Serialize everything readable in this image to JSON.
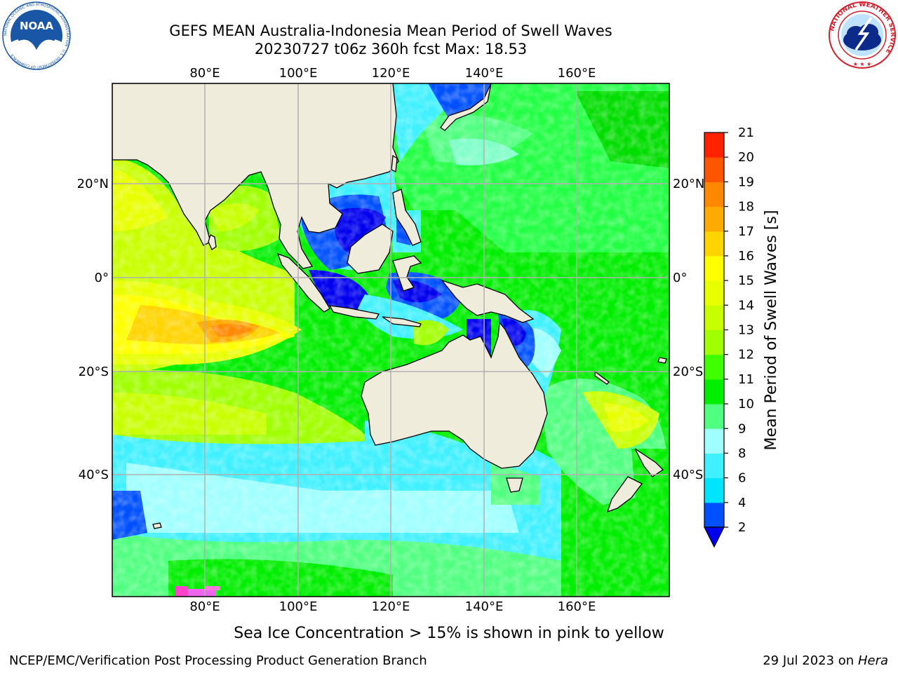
{
  "header": {
    "title_line1": "GEFS MEAN Australia-Indonesia Mean Period of Swell Waves",
    "title_line2": "20230727 t06z 360h fcst   Max: 18.53"
  },
  "logos": {
    "left": {
      "name": "noaa-logo",
      "text": "NOAA",
      "ring_text": "NATIONAL OCEANIC AND ATMOSPHERIC ADMINISTRATION · U.S. DEPARTMENT OF COMMERCE",
      "color": "#1a56a6"
    },
    "right": {
      "name": "nws-logo",
      "ring_text": "NATIONAL WEATHER SERVICE",
      "color": "#d3202a"
    }
  },
  "map": {
    "lon_labels": [
      "80°E",
      "100°E",
      "120°E",
      "140°E",
      "160°E"
    ],
    "lat_labels": [
      "20°N",
      "0°",
      "20°S",
      "40°S"
    ],
    "colors": {
      "land": "#efecdc",
      "grid": "#b0b0b0"
    }
  },
  "colorbar": {
    "label": "Mean Period of Swell Waves [s]",
    "ticks": [
      "2",
      "4",
      "6",
      "8",
      "9",
      "10",
      "11",
      "12",
      "13",
      "14",
      "15",
      "16",
      "17",
      "18",
      "19",
      "20",
      "21"
    ],
    "colors": [
      "#0050ff",
      "#00e5ff",
      "#40f0ff",
      "#a0ffff",
      "#50ff80",
      "#00ee00",
      "#40ff00",
      "#a0ff00",
      "#c8ff00",
      "#e8ff00",
      "#ffff00",
      "#ffd400",
      "#ffaa00",
      "#ff8800",
      "#ff5500",
      "#ff2200"
    ],
    "under_color": "#0000ee"
  },
  "caption": "Sea Ice Concentration > 15% is shown in pink to yellow",
  "footer": {
    "left": "NCEP/EMC/Verification Post Processing Product Generation Branch",
    "date": "29 Jul 2023 on ",
    "machine": "Hera"
  }
}
